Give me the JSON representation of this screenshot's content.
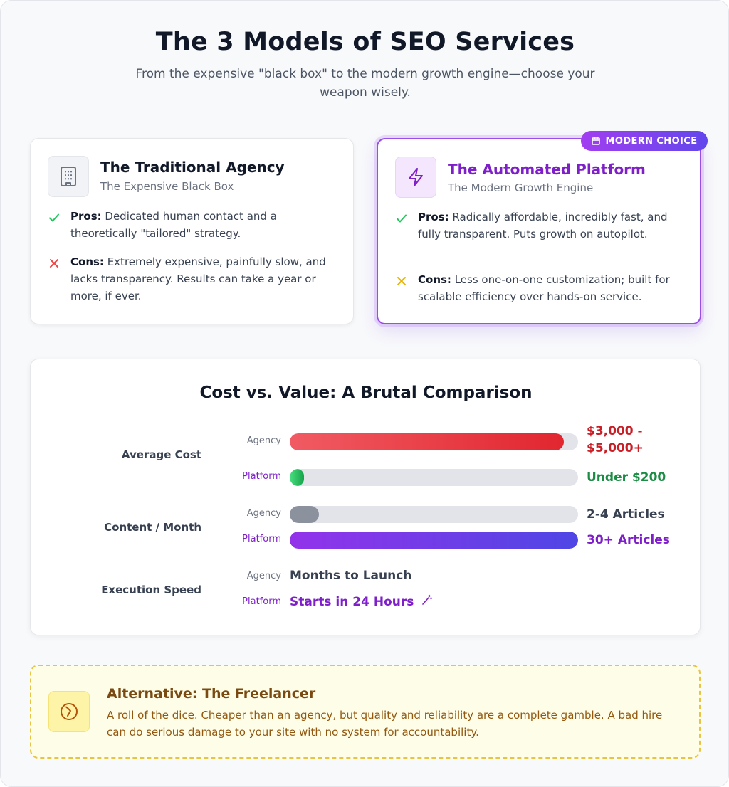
{
  "header": {
    "title": "The 3 Models of SEO Services",
    "subtitle": "From the expensive \"black box\" to the modern growth engine—choose your weapon wisely."
  },
  "agency_card": {
    "icon": "building-icon",
    "title": "The Traditional Agency",
    "subtitle": "The Expensive Black Box",
    "pros_label": "Pros:",
    "pros_text": "Dedicated human contact and a theoretically \"tailored\" strategy.",
    "cons_label": "Cons:",
    "cons_text": "Extremely expensive, painfully slow, and lacks transparency. Results can take a year or more, if ever."
  },
  "platform_card": {
    "badge": "MODERN CHOICE",
    "icon": "lightning-icon",
    "title": "The Automated Platform",
    "subtitle": "The Modern Growth Engine",
    "pros_label": "Pros:",
    "pros_text": "Radically affordable, incredibly fast, and fully transparent. Puts growth on autopilot.",
    "cons_label": "Cons:",
    "cons_text": "Less one-on-one customization; built for scalable efficiency over hands-on service."
  },
  "comparison": {
    "title": "Cost vs. Value: A Brutal Comparison",
    "agency_label": "Agency",
    "platform_label": "Platform",
    "metrics": [
      {
        "name": "Average Cost",
        "agency_value": "$3,000 - $5,000+",
        "agency_level": 0.95,
        "platform_value": "Under $200",
        "platform_level": 0.05
      },
      {
        "name": "Content / Month",
        "agency_value": "2-4 Articles",
        "agency_level": 0.1,
        "platform_value": "30+ Articles",
        "platform_level": 1.0
      },
      {
        "name": "Execution Speed",
        "agency_value": "Months to Launch",
        "platform_value": "Starts in 24 Hours"
      }
    ],
    "colors": {
      "agency_cost": "#e5353d",
      "platform_cost": "#22c55e",
      "agency_content": "#8b919d",
      "platform_content": "#7c3aed"
    }
  },
  "freelancer": {
    "icon": "compass-icon",
    "title": "Alternative: The Freelancer",
    "text": "A roll of the dice. Cheaper than an agency, but quality and reliability are a complete gamble. A bad hire can do serious damage to your site with no system for accountability."
  }
}
